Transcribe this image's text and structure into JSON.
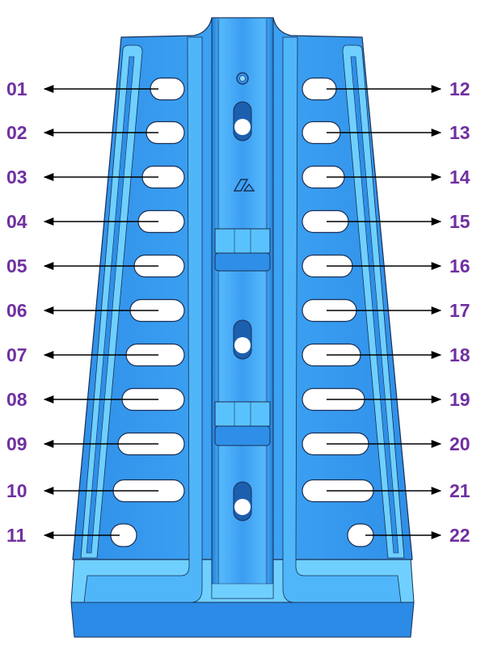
{
  "labels": {
    "left": [
      "01",
      "02",
      "03",
      "04",
      "05",
      "06",
      "07",
      "08",
      "09",
      "10",
      "11"
    ],
    "right": [
      "12",
      "13",
      "14",
      "15",
      "16",
      "17",
      "18",
      "19",
      "20",
      "21",
      "22"
    ]
  },
  "colors": {
    "part": "#3b9df2",
    "part_light": "#6fd0ff",
    "part_dark": "#1f7fd8",
    "edge": "#1a2f55",
    "label": "#7030a0",
    "arrow": "#000000"
  }
}
